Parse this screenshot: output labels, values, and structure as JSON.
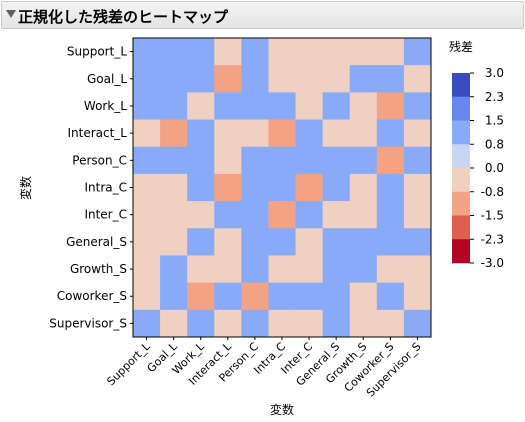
{
  "window": {
    "title": "正規化した残差のヒートマップ"
  },
  "chart_data": {
    "type": "heatmap",
    "title": "正規化した残差のヒートマップ",
    "xlabel": "変数",
    "ylabel": "変数",
    "categories": [
      "Support_L",
      "Goal_L",
      "Work_L",
      "Interact_L",
      "Person_C",
      "Intra_C",
      "Inter_C",
      "General_S",
      "Growth_S",
      "Coworker_S",
      "Supervisor_S"
    ],
    "values": [
      [
        0.8,
        0.8,
        0.8,
        -0.4,
        0.8,
        -0.4,
        -0.4,
        -0.4,
        -0.4,
        -0.4,
        0.8
      ],
      [
        0.8,
        0.8,
        0.8,
        -1.2,
        0.8,
        -0.4,
        -0.4,
        -0.4,
        0.8,
        0.8,
        -0.4
      ],
      [
        0.8,
        0.8,
        -0.4,
        0.8,
        0.8,
        0.8,
        -0.4,
        0.8,
        -0.4,
        -1.2,
        0.8
      ],
      [
        -0.4,
        -1.2,
        0.8,
        -0.4,
        -0.4,
        -1.2,
        0.8,
        -0.4,
        -0.4,
        1.4,
        -0.4
      ],
      [
        0.8,
        0.8,
        0.8,
        -0.4,
        0.8,
        0.8,
        0.8,
        1.4,
        0.8,
        -1.2,
        1.4
      ],
      [
        -0.4,
        -0.4,
        0.8,
        -1.2,
        0.8,
        0.8,
        -1.2,
        0.8,
        -0.4,
        0.8,
        -0.4
      ],
      [
        -0.4,
        -0.4,
        -0.4,
        0.8,
        0.8,
        -1.2,
        0.8,
        -0.4,
        -0.4,
        0.8,
        -0.4
      ],
      [
        -0.4,
        -0.4,
        0.8,
        -0.4,
        1.4,
        0.8,
        -0.4,
        0.8,
        0.8,
        0.8,
        0.8
      ],
      [
        -0.4,
        0.8,
        -0.4,
        -0.4,
        0.8,
        -0.4,
        -0.4,
        0.8,
        0.8,
        -0.4,
        -0.4
      ],
      [
        -0.4,
        0.8,
        -1.2,
        1.4,
        -1.2,
        0.8,
        0.8,
        0.8,
        -0.4,
        0.8,
        -0.4
      ],
      [
        0.8,
        -0.4,
        0.8,
        -0.4,
        1.4,
        -0.4,
        -0.4,
        0.8,
        -0.4,
        -0.4,
        0.8
      ]
    ],
    "legend": {
      "title": "残差",
      "placement": "right",
      "ticks": [
        "3.0",
        "2.3",
        "1.5",
        "0.8",
        "0.0",
        "-0.8",
        "-1.5",
        "-2.3",
        "-3.0"
      ],
      "colors": [
        "#3b4cc0",
        "#6688ee",
        "#88aaf8",
        "#c8d6f2",
        "#f0d0c0",
        "#f3a283",
        "#de604d",
        "#b40426"
      ]
    }
  }
}
